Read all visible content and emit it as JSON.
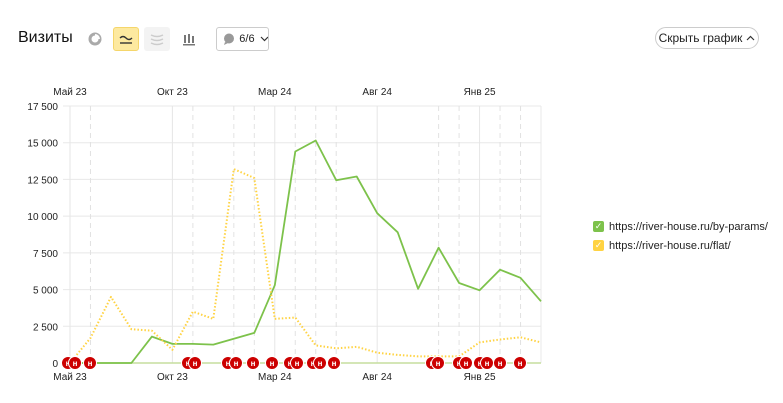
{
  "header": {
    "title": "Визиты",
    "segments_label": "6/6",
    "hide_chart_label": "Скрыть график"
  },
  "toolbar": {
    "icons": [
      "pie-chart-icon",
      "line-chart-icon",
      "stacked-area-icon",
      "bar-chart-icon",
      "comment-icon"
    ],
    "active": "line-chart-icon"
  },
  "colors": {
    "series1": "#7dc24b",
    "series2": "#ffd342",
    "annotation": "#cc0000",
    "active_bg": "#fde9a0"
  },
  "annotation_glyph": "н",
  "chart_data": {
    "type": "line",
    "x": [
      "2023-05",
      "2023-06",
      "2023-07",
      "2023-08",
      "2023-09",
      "2023-10",
      "2023-11",
      "2023-12",
      "2024-01",
      "2024-02",
      "2024-03",
      "2024-04",
      "2024-05",
      "2024-06",
      "2024-07",
      "2024-08",
      "2024-09",
      "2024-10",
      "2024-11",
      "2024-12",
      "2025-01",
      "2025-02",
      "2025-03",
      "2025-04"
    ],
    "x_tick_labels": [
      "Май 23",
      "Окт 23",
      "Мар 24",
      "Авг 24",
      "Янв 25"
    ],
    "x_tick_indices": [
      0,
      5,
      10,
      15,
      20
    ],
    "y_tick_labels": [
      "0",
      "2 500",
      "5 000",
      "7 500",
      "10 000",
      "12 500",
      "15 000",
      "17 500"
    ],
    "ylim": [
      0,
      17500
    ],
    "grid": true,
    "legend_position": "right",
    "series": [
      {
        "name": "https://river-house.ru/by-params/",
        "style": "solid",
        "values": [
          0,
          0,
          0,
          0,
          1800,
          1300,
          1300,
          1250,
          1650,
          2050,
          5300,
          14400,
          15150,
          12450,
          12700,
          10200,
          8900,
          5050,
          7850,
          5450,
          4950,
          6350,
          5800,
          4200
        ]
      },
      {
        "name": "https://river-house.ru/flat/",
        "style": "dotted",
        "values": [
          0,
          1700,
          4500,
          2300,
          2200,
          900,
          3500,
          3000,
          13200,
          12600,
          3000,
          3100,
          1200,
          1000,
          1100,
          700,
          550,
          450,
          450,
          450,
          1400,
          1600,
          1750,
          1400
        ]
      }
    ]
  }
}
